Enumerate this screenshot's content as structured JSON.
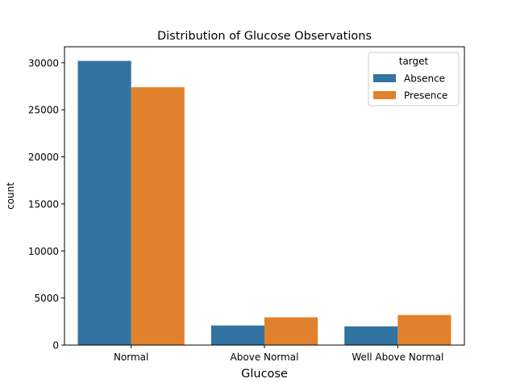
{
  "chart_data": {
    "type": "bar",
    "title": "Distribution of Glucose Observations",
    "xlabel": "Glucose",
    "ylabel": "count",
    "categories": [
      "Normal",
      "Above Normal",
      "Well Above Normal"
    ],
    "series": [
      {
        "name": "Absence",
        "color": "#3274a1",
        "values": [
          30200,
          2080,
          1990
        ]
      },
      {
        "name": "Presence",
        "color": "#e1812c",
        "values": [
          27400,
          2950,
          3200
        ]
      }
    ],
    "ylim": [
      0,
      31700
    ],
    "yticks": [
      0,
      5000,
      10000,
      15000,
      20000,
      25000,
      30000
    ],
    "legend": {
      "title": "target",
      "placement": "top-right"
    },
    "grid": false
  }
}
